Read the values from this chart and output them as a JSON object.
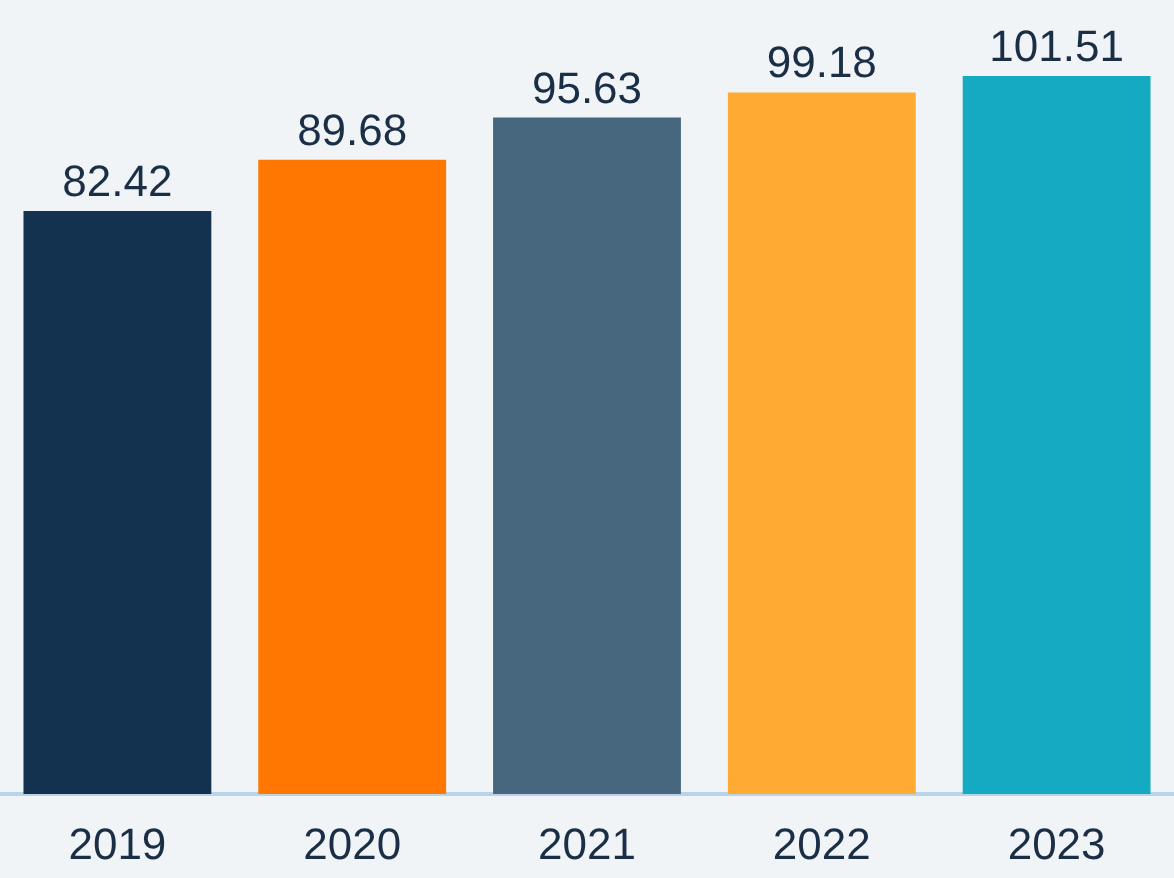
{
  "chart_data": {
    "type": "bar",
    "categories": [
      "2019",
      "2020",
      "2021",
      "2022",
      "2023"
    ],
    "values": [
      82.42,
      89.68,
      95.63,
      99.18,
      101.51
    ],
    "colors": [
      "#12324f",
      "#ff7700",
      "#46677e",
      "#ffaa33",
      "#14aac2"
    ],
    "data_labels": true
  }
}
